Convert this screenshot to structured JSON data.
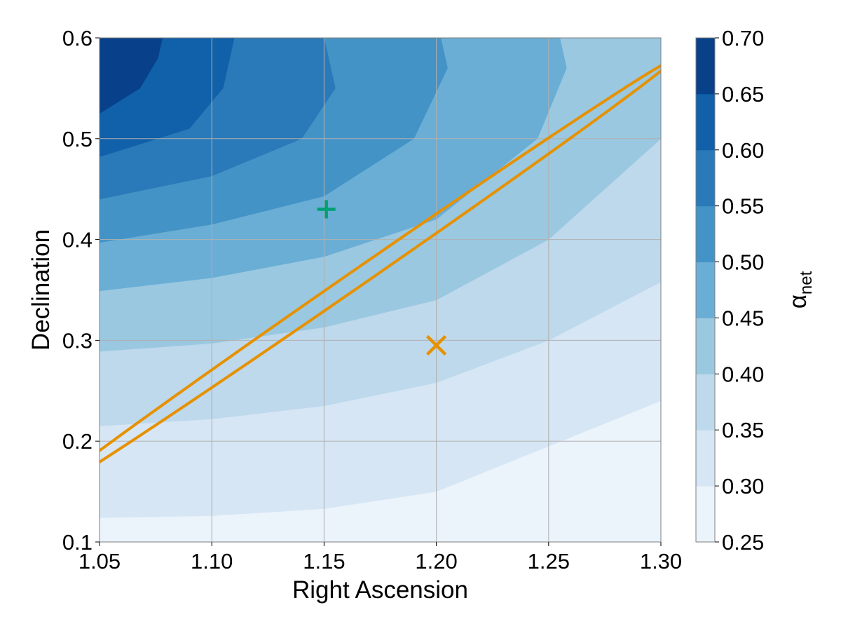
{
  "chart_data": {
    "type": "contour",
    "xlabel": "Right Ascension",
    "ylabel": "Declination",
    "colorbar_label_main": "α",
    "colorbar_label_sub": "net",
    "xlim": [
      1.05,
      1.3
    ],
    "ylim": [
      0.1,
      0.6
    ],
    "x_ticks": [
      1.05,
      1.1,
      1.15,
      1.2,
      1.25,
      1.3
    ],
    "x_tick_labels": [
      "1.05",
      "1.10",
      "1.15",
      "1.20",
      "1.25",
      "1.30"
    ],
    "y_ticks": [
      0.1,
      0.2,
      0.3,
      0.4,
      0.5,
      0.6
    ],
    "y_tick_labels": [
      "0.1",
      "0.2",
      "0.3",
      "0.4",
      "0.5",
      "0.6"
    ],
    "grid": true,
    "colorbar_levels": [
      0.25,
      0.3,
      0.35,
      0.4,
      0.45,
      0.5,
      0.55,
      0.6,
      0.65,
      0.7
    ],
    "colorbar_tick_labels": [
      "0.25",
      "0.30",
      "0.35",
      "0.40",
      "0.45",
      "0.50",
      "0.55",
      "0.60",
      "0.65",
      "0.70"
    ],
    "colorbar_colors": [
      "#ebf3fb",
      "#d6e6f4",
      "#bed8ec",
      "#9ac8e0",
      "#6aaed6",
      "#4393c6",
      "#2a79b8",
      "#1060aa",
      "#08408a"
    ],
    "contour_boundaries": [
      {
        "level": 0.3,
        "points": [
          [
            1.05,
            0.124
          ],
          [
            1.1,
            0.126
          ],
          [
            1.15,
            0.133
          ],
          [
            1.2,
            0.15
          ],
          [
            1.25,
            0.195
          ],
          [
            1.3,
            0.24
          ]
        ]
      },
      {
        "level": 0.35,
        "points": [
          [
            1.05,
            0.215
          ],
          [
            1.1,
            0.222
          ],
          [
            1.15,
            0.235
          ],
          [
            1.2,
            0.258
          ],
          [
            1.25,
            0.3
          ],
          [
            1.3,
            0.358
          ]
        ]
      },
      {
        "level": 0.4,
        "points": [
          [
            1.05,
            0.289
          ],
          [
            1.1,
            0.297
          ],
          [
            1.15,
            0.313
          ],
          [
            1.2,
            0.34
          ],
          [
            1.25,
            0.4
          ],
          [
            1.3,
            0.5
          ]
        ]
      },
      {
        "level": 0.45,
        "points": [
          [
            1.05,
            0.349
          ],
          [
            1.1,
            0.362
          ],
          [
            1.15,
            0.383
          ],
          [
            1.2,
            0.42
          ],
          [
            1.245,
            0.5
          ],
          [
            1.258,
            0.57
          ],
          [
            1.255,
            0.6
          ]
        ]
      },
      {
        "level": 0.5,
        "points": [
          [
            1.05,
            0.397
          ],
          [
            1.1,
            0.415
          ],
          [
            1.15,
            0.443
          ],
          [
            1.19,
            0.5
          ],
          [
            1.205,
            0.57
          ],
          [
            1.202,
            0.6
          ]
        ]
      },
      {
        "level": 0.55,
        "points": [
          [
            1.05,
            0.44
          ],
          [
            1.1,
            0.463
          ],
          [
            1.14,
            0.5
          ],
          [
            1.155,
            0.55
          ],
          [
            1.15,
            0.6
          ]
        ]
      },
      {
        "level": 0.6,
        "points": [
          [
            1.05,
            0.482
          ],
          [
            1.09,
            0.51
          ],
          [
            1.105,
            0.55
          ],
          [
            1.11,
            0.6
          ]
        ]
      },
      {
        "level": 0.65,
        "points": [
          [
            1.05,
            0.525
          ],
          [
            1.068,
            0.55
          ],
          [
            1.076,
            0.58
          ],
          [
            1.078,
            0.6
          ]
        ]
      }
    ],
    "ellipse": {
      "center": [
        1.165,
        0.362
      ],
      "semi_axis_x": 0.0054,
      "semi_axis_y": 0.257,
      "rotation_deg": 32.96,
      "color": "#e69100"
    },
    "markers": [
      {
        "symbol": "+",
        "x": 1.151,
        "y": 0.43,
        "color": "#009e73"
      },
      {
        "symbol": "x",
        "x": 1.2,
        "y": 0.295,
        "color": "#e69100"
      }
    ]
  }
}
